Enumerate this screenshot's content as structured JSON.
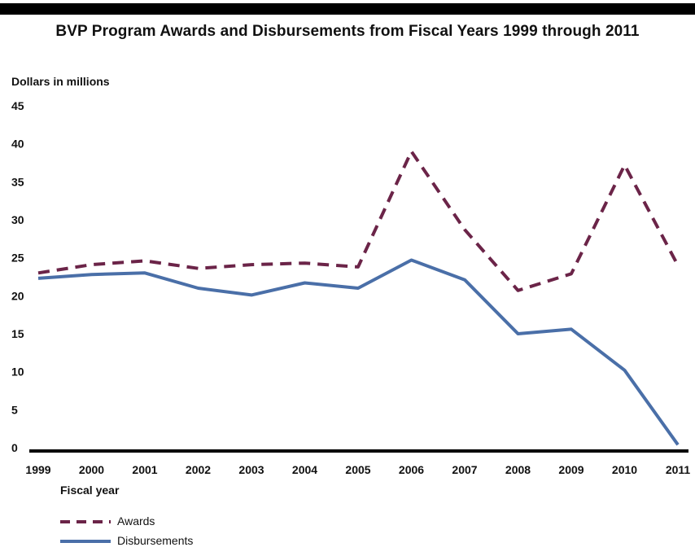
{
  "chart_data": {
    "type": "line",
    "title": "BVP Program Awards and Disbursements from Fiscal Years 1999 through 2011",
    "ylabel": "Dollars in millions",
    "xlabel": "Fiscal year",
    "ylim": [
      0,
      45
    ],
    "yticks": [
      0,
      5,
      10,
      15,
      20,
      25,
      30,
      35,
      40,
      45
    ],
    "categories": [
      "1999",
      "2000",
      "2001",
      "2002",
      "2003",
      "2004",
      "2005",
      "2006",
      "2007",
      "2008",
      "2009",
      "2010",
      "2011"
    ],
    "grid": false,
    "legend_position": "bottom-left",
    "series": [
      {
        "name": "Awards",
        "color": "#6b2448",
        "style": "dashed",
        "values": [
          23.0,
          24.1,
          24.6,
          23.6,
          24.1,
          24.3,
          23.8,
          39.0,
          28.7,
          20.7,
          22.9,
          37.2,
          24.0
        ]
      },
      {
        "name": "Disbursements",
        "color": "#4a6fa8",
        "style": "solid",
        "values": [
          22.3,
          22.8,
          23.0,
          21.0,
          20.1,
          21.7,
          21.0,
          24.7,
          22.1,
          15.0,
          15.6,
          10.2,
          0.4
        ]
      }
    ]
  }
}
